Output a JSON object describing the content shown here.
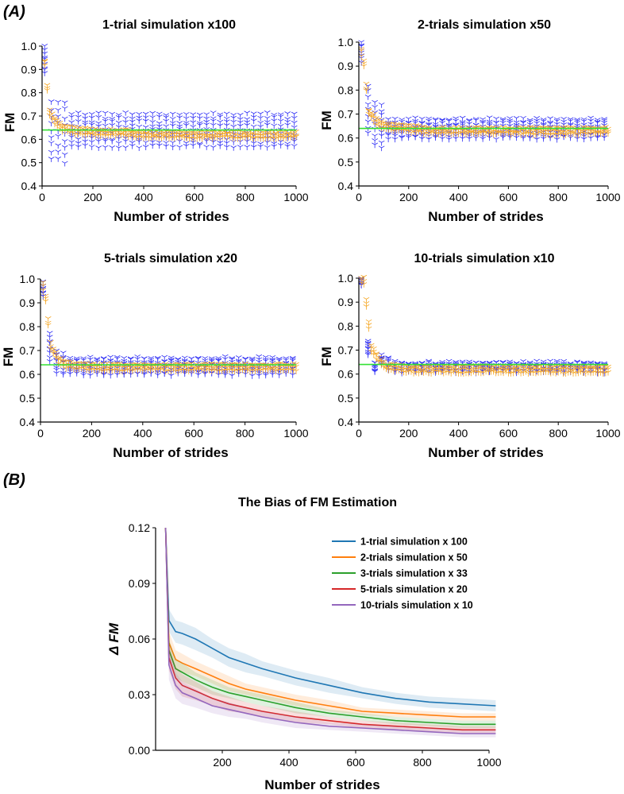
{
  "panel_labels": {
    "a": "(A)",
    "b": "(B)"
  },
  "colors": {
    "markers": "#2b2bf5",
    "mean_markers": "#f5a623",
    "reference_line": "#33e033",
    "axis": "#000000"
  },
  "chart_data": [
    {
      "type": "scatter",
      "title": "1-trial simulation x100",
      "xlabel": "Number of strides",
      "ylabel": "FM",
      "xlim": [
        0,
        1000
      ],
      "ylim": [
        0.4,
        1.0
      ],
      "xticks": [
        "0",
        "200",
        "400",
        "600",
        "800",
        "1000"
      ],
      "yticks": [
        "0.4",
        "0.5",
        "0.6",
        "0.7",
        "0.8",
        "0.9",
        "1.0"
      ],
      "reference_value": 0.64,
      "band": {
        "low": 0.57,
        "high": 0.71,
        "first_points": [
          [
            10,
            0.88,
            1.0
          ],
          [
            30,
            0.55,
            0.8
          ],
          [
            50,
            0.52,
            0.76
          ],
          [
            80,
            0.5,
            0.76
          ]
        ]
      },
      "mean": {
        "x": [
          10,
          30,
          50,
          80,
          120,
          200,
          300,
          400,
          500,
          600,
          800,
          1000
        ],
        "y": [
          0.93,
          0.72,
          0.68,
          0.65,
          0.64,
          0.63,
          0.63,
          0.62,
          0.62,
          0.62,
          0.62,
          0.62
        ]
      }
    },
    {
      "type": "scatter",
      "title": "2-trials simulation x50",
      "xlabel": "Number of strides",
      "ylabel": "FM",
      "xlim": [
        0,
        1000
      ],
      "ylim": [
        0.4,
        1.0
      ],
      "xticks": [
        "0",
        "200",
        "400",
        "600",
        "800",
        "1000"
      ],
      "yticks": [
        "0.4",
        "0.5",
        "0.6",
        "0.7",
        "0.8",
        "0.9",
        "1.0"
      ],
      "reference_value": 0.64,
      "band": {
        "low": 0.6,
        "high": 0.68,
        "first_points": [
          [
            15,
            0.92,
            1.0
          ],
          [
            40,
            0.62,
            0.82
          ],
          [
            70,
            0.57,
            0.75
          ],
          [
            100,
            0.56,
            0.74
          ]
        ]
      },
      "mean": {
        "x": [
          15,
          40,
          70,
          100,
          200,
          300,
          400,
          500,
          600,
          800,
          1000
        ],
        "y": [
          0.96,
          0.71,
          0.67,
          0.65,
          0.64,
          0.63,
          0.63,
          0.63,
          0.63,
          0.63,
          0.63
        ]
      }
    },
    {
      "type": "scatter",
      "title": "5-trials simulation x20",
      "xlabel": "Number of strides",
      "ylabel": "FM",
      "xlim": [
        0,
        1000
      ],
      "ylim": [
        0.4,
        1.0
      ],
      "xticks": [
        "0",
        "200",
        "400",
        "600",
        "800",
        "1000"
      ],
      "yticks": [
        "0.4",
        "0.5",
        "0.6",
        "0.7",
        "0.8",
        "0.9",
        "1.0"
      ],
      "reference_value": 0.64,
      "band": {
        "low": 0.6,
        "high": 0.67,
        "first_points": [
          [
            15,
            0.93,
            0.99
          ],
          [
            40,
            0.66,
            0.77
          ],
          [
            70,
            0.61,
            0.7
          ],
          [
            100,
            0.6,
            0.69
          ]
        ]
      },
      "mean": {
        "x": [
          15,
          40,
          70,
          100,
          200,
          300,
          400,
          500,
          600,
          800,
          1000
        ],
        "y": [
          0.97,
          0.72,
          0.66,
          0.64,
          0.63,
          0.63,
          0.63,
          0.63,
          0.63,
          0.63,
          0.63
        ]
      }
    },
    {
      "type": "scatter",
      "title": "10-trials simulation x10",
      "xlabel": "Number of strides",
      "ylabel": "FM",
      "xlim": [
        0,
        1000
      ],
      "ylim": [
        0.4,
        1.0
      ],
      "xticks": [
        "0",
        "200",
        "400",
        "600",
        "800",
        "1000"
      ],
      "yticks": [
        "0.4",
        "0.5",
        "0.6",
        "0.7",
        "0.8",
        "0.9",
        "1.0"
      ],
      "reference_value": 0.64,
      "band": {
        "low": 0.61,
        "high": 0.65,
        "first_points": [
          [
            20,
            0.97,
            1.0
          ],
          [
            50,
            0.68,
            0.74
          ],
          [
            80,
            0.64,
            0.68
          ],
          [
            110,
            0.62,
            0.67
          ]
        ]
      },
      "mean": {
        "x": [
          20,
          50,
          80,
          110,
          200,
          300,
          400,
          500,
          600,
          800,
          1000
        ],
        "y": [
          0.99,
          0.71,
          0.66,
          0.63,
          0.62,
          0.62,
          0.62,
          0.62,
          0.62,
          0.62,
          0.62
        ]
      }
    },
    {
      "type": "line",
      "title": "The Bias of FM Estimation",
      "xlabel": "Number of strides",
      "ylabel": "Δ FM",
      "xlim": [
        0,
        1000
      ],
      "ylim": [
        0.0,
        0.12
      ],
      "xticks": [
        200,
        400,
        600,
        800,
        1000
      ],
      "yticks": [
        0.0,
        0.03,
        0.06,
        0.09,
        0.12
      ],
      "ytick_labels": [
        "0.00",
        "0.03",
        "0.06",
        "0.09",
        "0.12"
      ],
      "legend_position": "top-right",
      "series": [
        {
          "name": "1-trial simulation x 100",
          "color": "#1f77b4",
          "x": [
            10,
            20,
            40,
            60,
            100,
            150,
            200,
            250,
            300,
            400,
            500,
            600,
            700,
            800,
            900,
            1000
          ],
          "y": [
            0.12,
            0.07,
            0.064,
            0.063,
            0.06,
            0.055,
            0.05,
            0.047,
            0.044,
            0.039,
            0.035,
            0.031,
            0.028,
            0.026,
            0.025,
            0.024
          ],
          "spread": [
            0.0,
            0.006,
            0.006,
            0.006,
            0.006,
            0.005,
            0.005,
            0.005,
            0.004,
            0.004,
            0.004,
            0.003,
            0.003,
            0.003,
            0.003,
            0.003
          ]
        },
        {
          "name": "2-trials simulation x 50",
          "color": "#ff7f0e",
          "x": [
            10,
            20,
            40,
            60,
            100,
            150,
            200,
            250,
            300,
            400,
            500,
            600,
            700,
            800,
            900,
            1000
          ],
          "y": [
            0.12,
            0.058,
            0.049,
            0.047,
            0.044,
            0.04,
            0.036,
            0.033,
            0.031,
            0.027,
            0.024,
            0.021,
            0.02,
            0.019,
            0.018,
            0.018
          ],
          "spread": [
            0.0,
            0.006,
            0.005,
            0.005,
            0.004,
            0.004,
            0.004,
            0.003,
            0.003,
            0.003,
            0.003,
            0.002,
            0.002,
            0.002,
            0.002,
            0.002
          ]
        },
        {
          "name": "3-trials simulation x 33",
          "color": "#2ca02c",
          "x": [
            10,
            20,
            40,
            60,
            100,
            150,
            200,
            250,
            300,
            400,
            500,
            600,
            700,
            800,
            900,
            1000
          ],
          "y": [
            0.12,
            0.054,
            0.044,
            0.042,
            0.038,
            0.034,
            0.031,
            0.029,
            0.027,
            0.023,
            0.02,
            0.018,
            0.016,
            0.015,
            0.014,
            0.014
          ],
          "spread": [
            0.0,
            0.006,
            0.005,
            0.005,
            0.004,
            0.004,
            0.003,
            0.003,
            0.003,
            0.003,
            0.002,
            0.002,
            0.002,
            0.002,
            0.002,
            0.002
          ]
        },
        {
          "name": "5-trials simulation x 20",
          "color": "#d62728",
          "x": [
            10,
            20,
            40,
            60,
            100,
            150,
            200,
            250,
            300,
            400,
            500,
            600,
            700,
            800,
            900,
            1000
          ],
          "y": [
            0.12,
            0.05,
            0.039,
            0.035,
            0.032,
            0.028,
            0.025,
            0.023,
            0.021,
            0.018,
            0.016,
            0.014,
            0.013,
            0.012,
            0.011,
            0.011
          ],
          "spread": [
            0.0,
            0.007,
            0.006,
            0.006,
            0.005,
            0.004,
            0.004,
            0.003,
            0.003,
            0.003,
            0.002,
            0.002,
            0.002,
            0.002,
            0.002,
            0.002
          ]
        },
        {
          "name": "10-trials simulation x 10",
          "color": "#9467bd",
          "x": [
            10,
            20,
            40,
            60,
            100,
            150,
            200,
            250,
            300,
            400,
            500,
            600,
            700,
            800,
            900,
            1000
          ],
          "y": [
            0.12,
            0.046,
            0.035,
            0.031,
            0.028,
            0.024,
            0.022,
            0.02,
            0.018,
            0.015,
            0.013,
            0.012,
            0.011,
            0.01,
            0.009,
            0.009
          ],
          "spread": [
            0.0,
            0.008,
            0.007,
            0.006,
            0.005,
            0.004,
            0.004,
            0.003,
            0.003,
            0.003,
            0.002,
            0.002,
            0.002,
            0.002,
            0.002,
            0.002
          ]
        }
      ]
    }
  ]
}
